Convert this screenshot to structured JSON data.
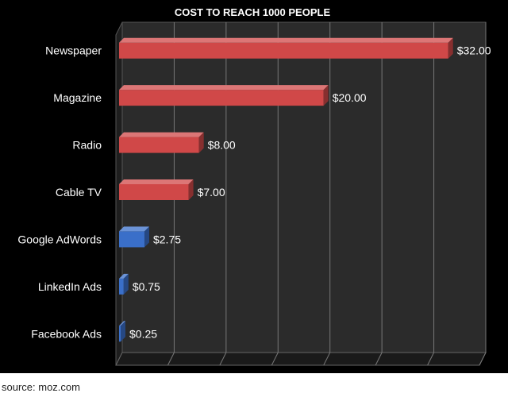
{
  "chart_data": {
    "type": "bar",
    "orientation": "horizontal",
    "title": "COST TO REACH 1000 PEOPLE",
    "xlabel": "",
    "ylabel": "",
    "categories": [
      "Newspaper",
      "Magazine",
      "Radio",
      "Cable TV",
      "Google AdWords",
      "LinkedIn Ads",
      "Facebook Ads"
    ],
    "values": [
      32.0,
      20.0,
      8.0,
      7.0,
      2.75,
      0.75,
      0.25
    ],
    "value_labels": [
      "$32.00",
      "$20.00",
      "$8.00",
      "$7.00",
      "$2.75",
      "$0.75",
      "$0.25"
    ],
    "bar_colors": [
      "#d04848",
      "#d04848",
      "#d04848",
      "#d04848",
      "#3a6fc9",
      "#3a6fc9",
      "#3a6fc9"
    ],
    "xlim": [
      0,
      35
    ],
    "grid": true,
    "legend": "none",
    "style": "3d"
  },
  "source": "source: moz.com"
}
